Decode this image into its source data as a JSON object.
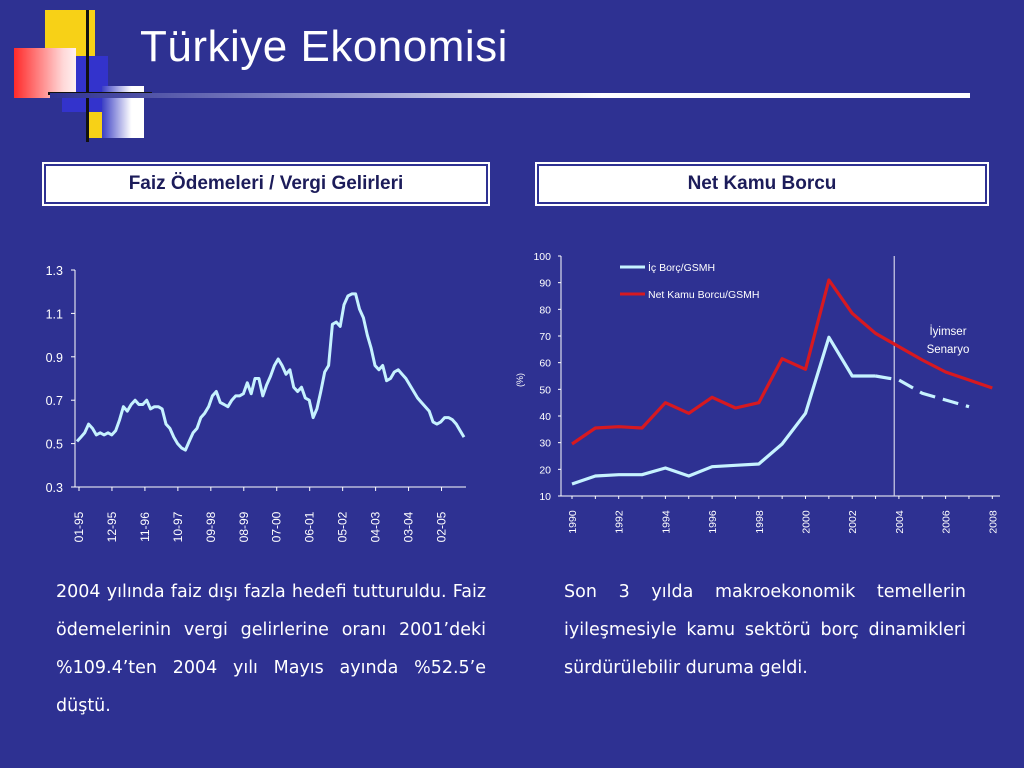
{
  "title": "Türkiye Ekonomisi",
  "left_panel": {
    "header": "Faiz Ödemeleri / Vergi Gelirleri",
    "text": "2004 yılında faiz dışı fazla hedefi tutturuldu. Faiz ödemelerinin vergi gelirlerine oranı 2001’deki %109.4’ten 2004 yılı Mayıs ayında %52.5’e düştü."
  },
  "right_panel": {
    "header": "Net Kamu Borcu",
    "text": "Son 3 yılda makroekonomik temellerin iyileşmesiyle kamu sektörü borç dinamikleri sürdürülebilir duruma geldi."
  },
  "colors": {
    "background": "#2e3192",
    "line_light": "#c6f2ff",
    "line_red": "#d71920"
  },
  "chart_data": [
    {
      "type": "line",
      "title": "",
      "xlabel": "",
      "ylabel": "",
      "ylim": [
        0.3,
        1.3
      ],
      "yticks": [
        "1.3",
        "1.1",
        "0.9",
        "0.7",
        "0.5",
        "0.3"
      ],
      "xticks": [
        "01-95",
        "12-95",
        "11-96",
        "10-97",
        "09-98",
        "08-99",
        "07-00",
        "06-01",
        "05-02",
        "04-03",
        "03-04",
        "02-05"
      ],
      "grid": false,
      "series": [
        {
          "values": [
            0.51,
            0.53,
            0.55,
            0.59,
            0.57,
            0.54,
            0.55,
            0.54,
            0.55,
            0.54,
            0.56,
            0.61,
            0.67,
            0.65,
            0.68,
            0.7,
            0.68,
            0.68,
            0.7,
            0.66,
            0.67,
            0.67,
            0.66,
            0.59,
            0.57,
            0.53,
            0.5,
            0.48,
            0.47,
            0.51,
            0.55,
            0.57,
            0.62,
            0.64,
            0.67,
            0.72,
            0.74,
            0.69,
            0.68,
            0.67,
            0.7,
            0.72,
            0.72,
            0.73,
            0.78,
            0.73,
            0.8,
            0.8,
            0.72,
            0.77,
            0.81,
            0.86,
            0.89,
            0.86,
            0.82,
            0.84,
            0.76,
            0.74,
            0.76,
            0.71,
            0.7,
            0.62,
            0.66,
            0.74,
            0.83,
            0.86,
            1.05,
            1.06,
            1.04,
            1.14,
            1.18,
            1.19,
            1.19,
            1.12,
            1.08,
            1.0,
            0.94,
            0.86,
            0.84,
            0.86,
            0.79,
            0.8,
            0.83,
            0.84,
            0.82,
            0.8,
            0.77,
            0.74,
            0.71,
            0.69,
            0.67,
            0.65,
            0.6,
            0.59,
            0.6,
            0.62,
            0.62,
            0.61,
            0.59,
            0.56,
            0.53
          ]
        }
      ]
    },
    {
      "type": "line",
      "title": "",
      "xlabel": "",
      "ylabel": "(%)",
      "ylim": [
        10,
        100
      ],
      "yticks": [
        100,
        90,
        80,
        70,
        60,
        50,
        40,
        30,
        20,
        10
      ],
      "xticks": [
        "1990",
        "1992",
        "1994",
        "1996",
        "1998",
        "2000",
        "2002",
        "2004",
        "2006",
        "2008"
      ],
      "grid": false,
      "legend_position": "top",
      "annotation": "İyimser Senaryo",
      "vertical_marker_x": 2003.8,
      "x": [
        1990,
        1991,
        1992,
        1993,
        1994,
        1995,
        1996,
        1997,
        1998,
        1999,
        2000,
        2001,
        2002,
        2003,
        2004,
        2005,
        2006,
        2007,
        2008
      ],
      "series": [
        {
          "name": "İç Borç/GSMH",
          "values": [
            14.5,
            17.5,
            18,
            18,
            20.5,
            17.5,
            21,
            21.5,
            22,
            29.5,
            41,
            69.5,
            55,
            55,
            53.5,
            48.5,
            46,
            43.5,
            null
          ],
          "projection_from": 2003
        },
        {
          "name": "Net Kamu Borcu/GSMH",
          "values": [
            29.5,
            35.5,
            36,
            35.5,
            45,
            41,
            47,
            43,
            45,
            61.5,
            57.5,
            91,
            78.5,
            71,
            66,
            61,
            56.5,
            53.5,
            50.5
          ]
        }
      ]
    }
  ]
}
